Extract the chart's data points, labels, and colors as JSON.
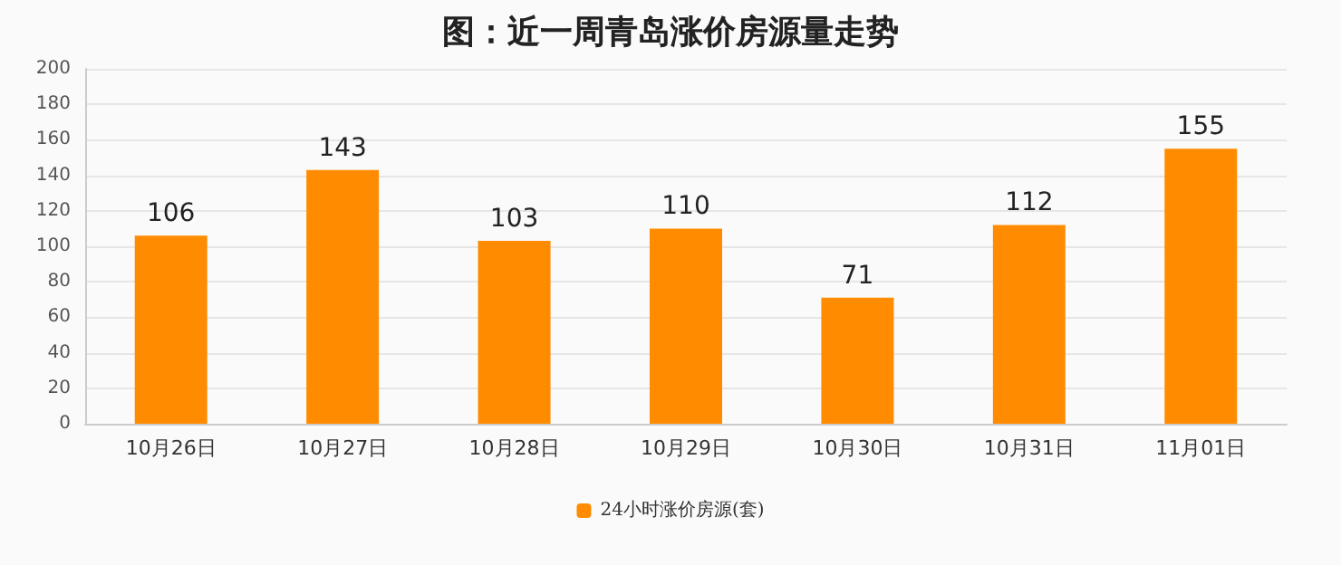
{
  "chart_data": {
    "type": "bar",
    "title": "图：近一周青岛涨价房源量走势",
    "categories": [
      "10月26日",
      "10月27日",
      "10月28日",
      "10月29日",
      "10月30日",
      "10月31日",
      "11月01日"
    ],
    "series": [
      {
        "name": "24小时涨价房源(套)",
        "color": "#ff8c00",
        "values": [
          106,
          143,
          103,
          110,
          71,
          112,
          155
        ]
      }
    ],
    "ylim": [
      0,
      200
    ],
    "yticks": [
      0,
      20,
      40,
      60,
      80,
      100,
      120,
      140,
      160,
      180,
      200
    ],
    "grid": "y",
    "legend": "bottom",
    "data_labels": true
  }
}
